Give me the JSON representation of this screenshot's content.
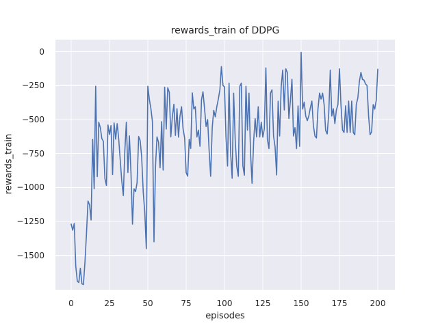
{
  "chart_data": {
    "type": "line",
    "title": "rewards_train of DDPG",
    "xlabel": "episodes",
    "ylabel": "rewards_train",
    "x_ticks": [
      0,
      25,
      50,
      75,
      100,
      125,
      150,
      175,
      200
    ],
    "x_tick_labels": [
      "0",
      "25",
      "50",
      "75",
      "100",
      "125",
      "150",
      "175",
      "200"
    ],
    "y_ticks": [
      0,
      -250,
      -500,
      -750,
      -1000,
      -1250,
      -1500
    ],
    "y_tick_labels": [
      "0",
      "−250",
      "−500",
      "−750",
      "−1000",
      "−1250",
      "−1500"
    ],
    "xlim": [
      -10,
      211
    ],
    "ylim": [
      -1753,
      88
    ],
    "grid": true,
    "legend": "none",
    "style": "seaborn-darkgrid",
    "colors": {
      "line": "#4c72b0",
      "axes_background": "#eaeaf2",
      "grid": "#ffffff",
      "figure_background": "#ffffff",
      "text": "#262626"
    },
    "series": [
      {
        "name": "rewards_train",
        "x_start": 0,
        "x_step": 1,
        "y": [
          -1270,
          -1315,
          -1265,
          -1580,
          -1690,
          -1700,
          -1595,
          -1710,
          -1715,
          -1545,
          -1335,
          -1100,
          -1130,
          -1240,
          -645,
          -1010,
          -255,
          -920,
          -520,
          -560,
          -640,
          -660,
          -935,
          -985,
          -540,
          -610,
          -545,
          -905,
          -525,
          -645,
          -530,
          -640,
          -800,
          -950,
          -1060,
          -730,
          -520,
          -890,
          -620,
          -895,
          -1270,
          -1010,
          -1030,
          -965,
          -625,
          -655,
          -775,
          -1035,
          -1180,
          -1450,
          -255,
          -350,
          -420,
          -515,
          -1400,
          -848,
          -628,
          -668,
          -855,
          -516,
          -872,
          -262,
          -570,
          -266,
          -300,
          -628,
          -480,
          -388,
          -617,
          -420,
          -630,
          -474,
          -406,
          -568,
          -636,
          -891,
          -917,
          -645,
          -713,
          -304,
          -423,
          -406,
          -629,
          -578,
          -697,
          -355,
          -296,
          -420,
          -552,
          -500,
          -731,
          -918,
          -560,
          -433,
          -480,
          -406,
          -350,
          -280,
          -110,
          -249,
          -260,
          -627,
          -842,
          -232,
          -749,
          -932,
          -306,
          -652,
          -842,
          -918,
          -255,
          -232,
          -842,
          -910,
          -255,
          -578,
          -306,
          -748,
          -970,
          -662,
          -493,
          -629,
          -406,
          -629,
          -520,
          -630,
          -570,
          -120,
          -646,
          -714,
          -306,
          -281,
          -621,
          -700,
          -908,
          -365,
          -621,
          -255,
          -136,
          -430,
          -127,
          -153,
          -493,
          -360,
          -204,
          -621,
          -560,
          -714,
          -400,
          -697,
          -5,
          -423,
          -372,
          -474,
          -508,
          -475,
          -416,
          -364,
          -544,
          -621,
          -636,
          -423,
          -306,
          -350,
          -306,
          -390,
          -580,
          -606,
          -460,
          -136,
          -474,
          -420,
          -530,
          -430,
          -390,
          -127,
          -390,
          -578,
          -595,
          -399,
          -595,
          -364,
          -595,
          -364,
          -595,
          -612,
          -390,
          -340,
          -221,
          -153,
          -204,
          -210,
          -238,
          -250,
          -475,
          -612,
          -590,
          -390,
          -424,
          -357,
          -130
        ]
      }
    ]
  }
}
